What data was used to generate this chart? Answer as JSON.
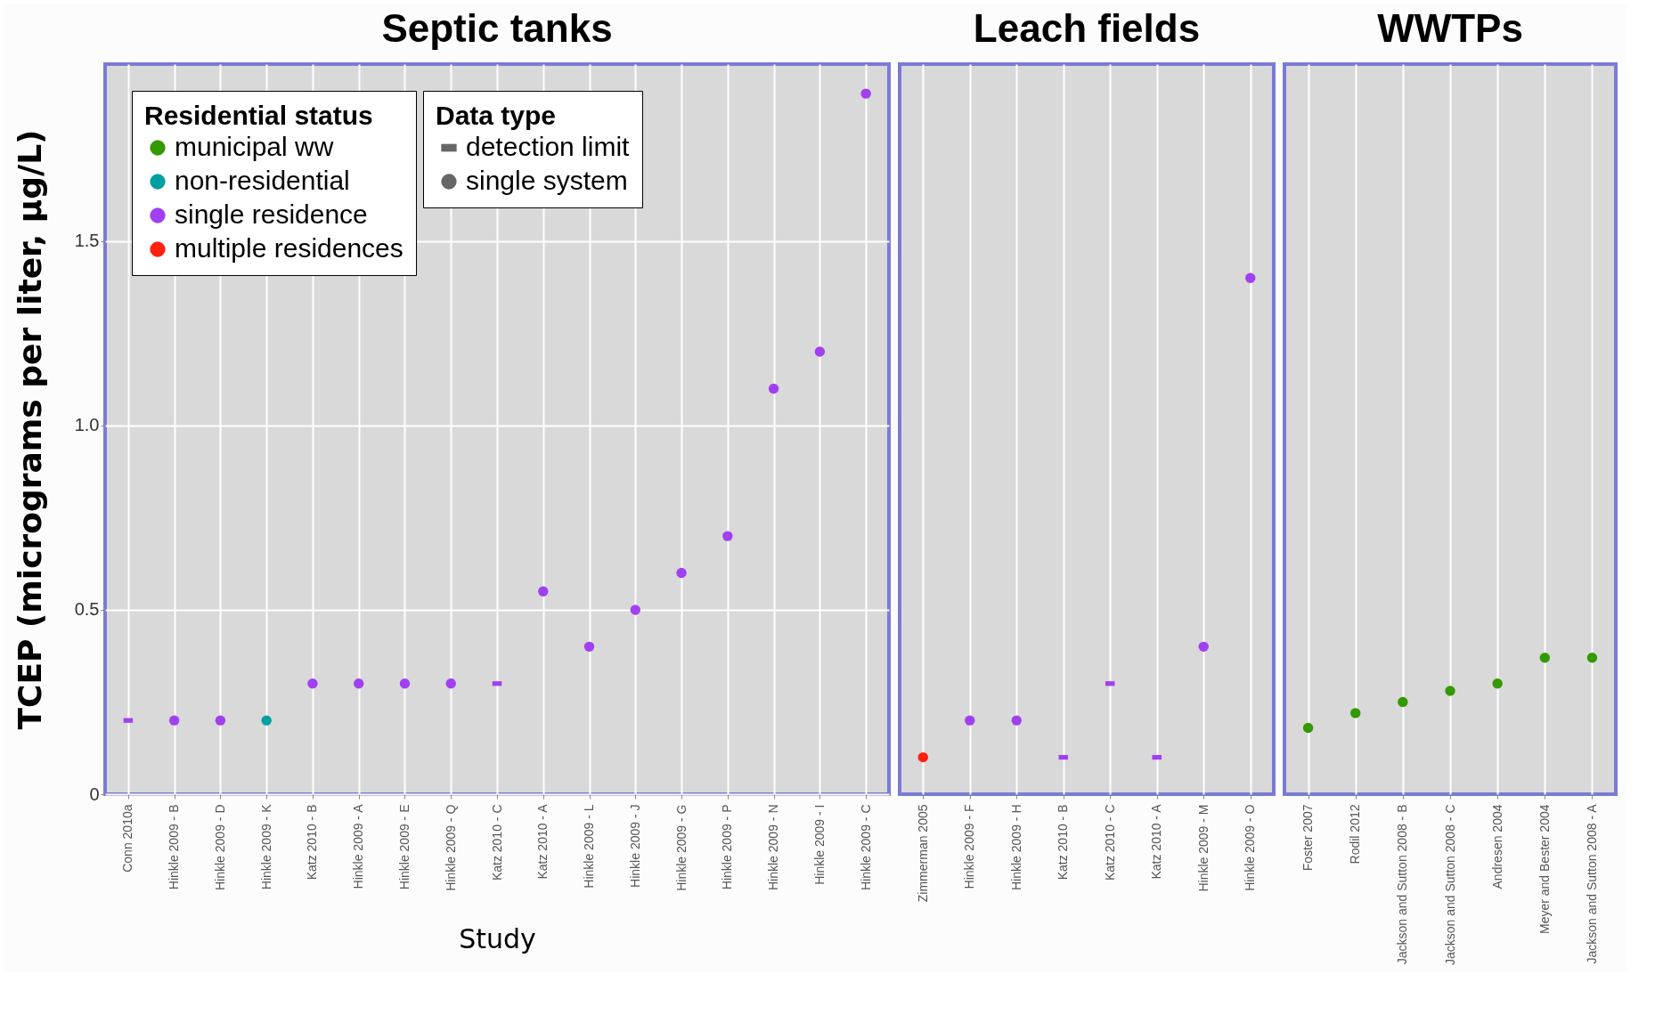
{
  "chart_data": [
    {
      "type": "scatter",
      "title": "Septic tanks",
      "xlabel": "Study",
      "ylabel": "TCEP (micrograms per liter, µg/L)",
      "legend_title": "Residential status",
      "annotations": [
        "Data type",
        "detection limit",
        "single system"
      ],
      "categories": [
        "Conn 2010a",
        "Hinkle 2009 - B",
        "Hinkle 2009 - D",
        "Hinkle 2009 - K",
        "Katz 2010 - B",
        "Hinkle 2009 - A",
        "Hinkle 2009 - E",
        "Hinkle 2009 - Q",
        "Katz 2010 - C",
        "Katz 2010 - A",
        "Hinkle 2009 - L",
        "Hinkle 2009 - J",
        "Hinkle 2009 - G",
        "Hinkle 2009 - P",
        "Hinkle 2009 - N",
        "Hinkle 2009 - I",
        "Hinkle 2009 - C"
      ],
      "series": [
        {
          "name": "municipal ww",
          "color": "#339900",
          "marker": "circle",
          "values": [
            null,
            null,
            null,
            null,
            null,
            null,
            null,
            null,
            null,
            null,
            null,
            null,
            null,
            null,
            null,
            null,
            null
          ]
        },
        {
          "name": "non-residential",
          "color": "#00a0a0",
          "marker": "circle",
          "values": [
            null,
            null,
            null,
            0.2,
            null,
            null,
            null,
            null,
            null,
            null,
            null,
            null,
            null,
            null,
            null,
            null,
            null
          ]
        },
        {
          "name": "single residence",
          "color": "#a040f0",
          "marker": "circle",
          "values": [
            null,
            0.2,
            0.2,
            null,
            0.3,
            0.3,
            0.3,
            0.3,
            null,
            0.55,
            0.4,
            0.5,
            0.6,
            0.7,
            1.1,
            1.2,
            1.9
          ]
        },
        {
          "name": "multiple residences",
          "color": "#ff2010",
          "marker": "circle",
          "values": [
            null,
            null,
            null,
            null,
            null,
            null,
            null,
            null,
            null,
            null,
            null,
            null,
            null,
            null,
            null,
            null,
            null
          ]
        },
        {
          "color": "#a040f0",
          "marker": "square",
          "values": [
            0.2,
            null,
            null,
            null,
            null,
            null,
            null,
            null,
            0.3,
            null,
            null,
            null,
            null,
            null,
            null,
            null,
            null
          ]
        }
      ],
      "ylim": [
        0,
        1.98
      ],
      "yticks": [
        0,
        0.5,
        {
          "value": 1,
          "label": "1.0"
        },
        1.5
      ],
      "grid": true,
      "legend": "top left"
    },
    {
      "type": "scatter",
      "title": "Leach fields",
      "categories": [
        "Zimmerman 2005",
        "Hinkle 2009 - F",
        "Hinkle 2009 - H",
        "Katz 2010 - B",
        "Katz 2010 - C",
        "Katz 2010 - A",
        "Hinkle 2009 - M",
        "Hinkle 2009 - O"
      ],
      "series": [
        {
          "color": "#ff2010",
          "marker": "circle",
          "values": [
            0.1,
            null,
            null,
            null,
            null,
            null,
            null,
            null
          ]
        },
        {
          "color": "#a040f0",
          "marker": "circle",
          "values": [
            null,
            0.2,
            0.2,
            null,
            null,
            null,
            0.4,
            1.4
          ]
        },
        {
          "color": "#a040f0",
          "marker": "square",
          "values": [
            null,
            null,
            null,
            0.1,
            0.3,
            0.1,
            null,
            null
          ]
        }
      ],
      "ylim": [
        0,
        1.98
      ],
      "grid": true,
      "tick_labels": "x"
    },
    {
      "type": "scatter",
      "title": "WWTPs",
      "categories": [
        "Foster 2007",
        "Rodil 2012",
        "Jackson and Sutton 2008 - B",
        "Jackson and Sutton 2008 - C",
        "Andresen 2004",
        "Meyer and Bester 2004",
        "Jackson and Sutton 2008 - A"
      ],
      "series": [
        {
          "color": "#339900",
          "marker": "circle",
          "values": [
            0.18,
            0.22,
            0.25,
            0.28,
            0.3,
            0.37,
            0.37
          ]
        }
      ],
      "ylim": [
        0,
        1.98
      ],
      "grid": true,
      "tick_labels": "x"
    }
  ]
}
